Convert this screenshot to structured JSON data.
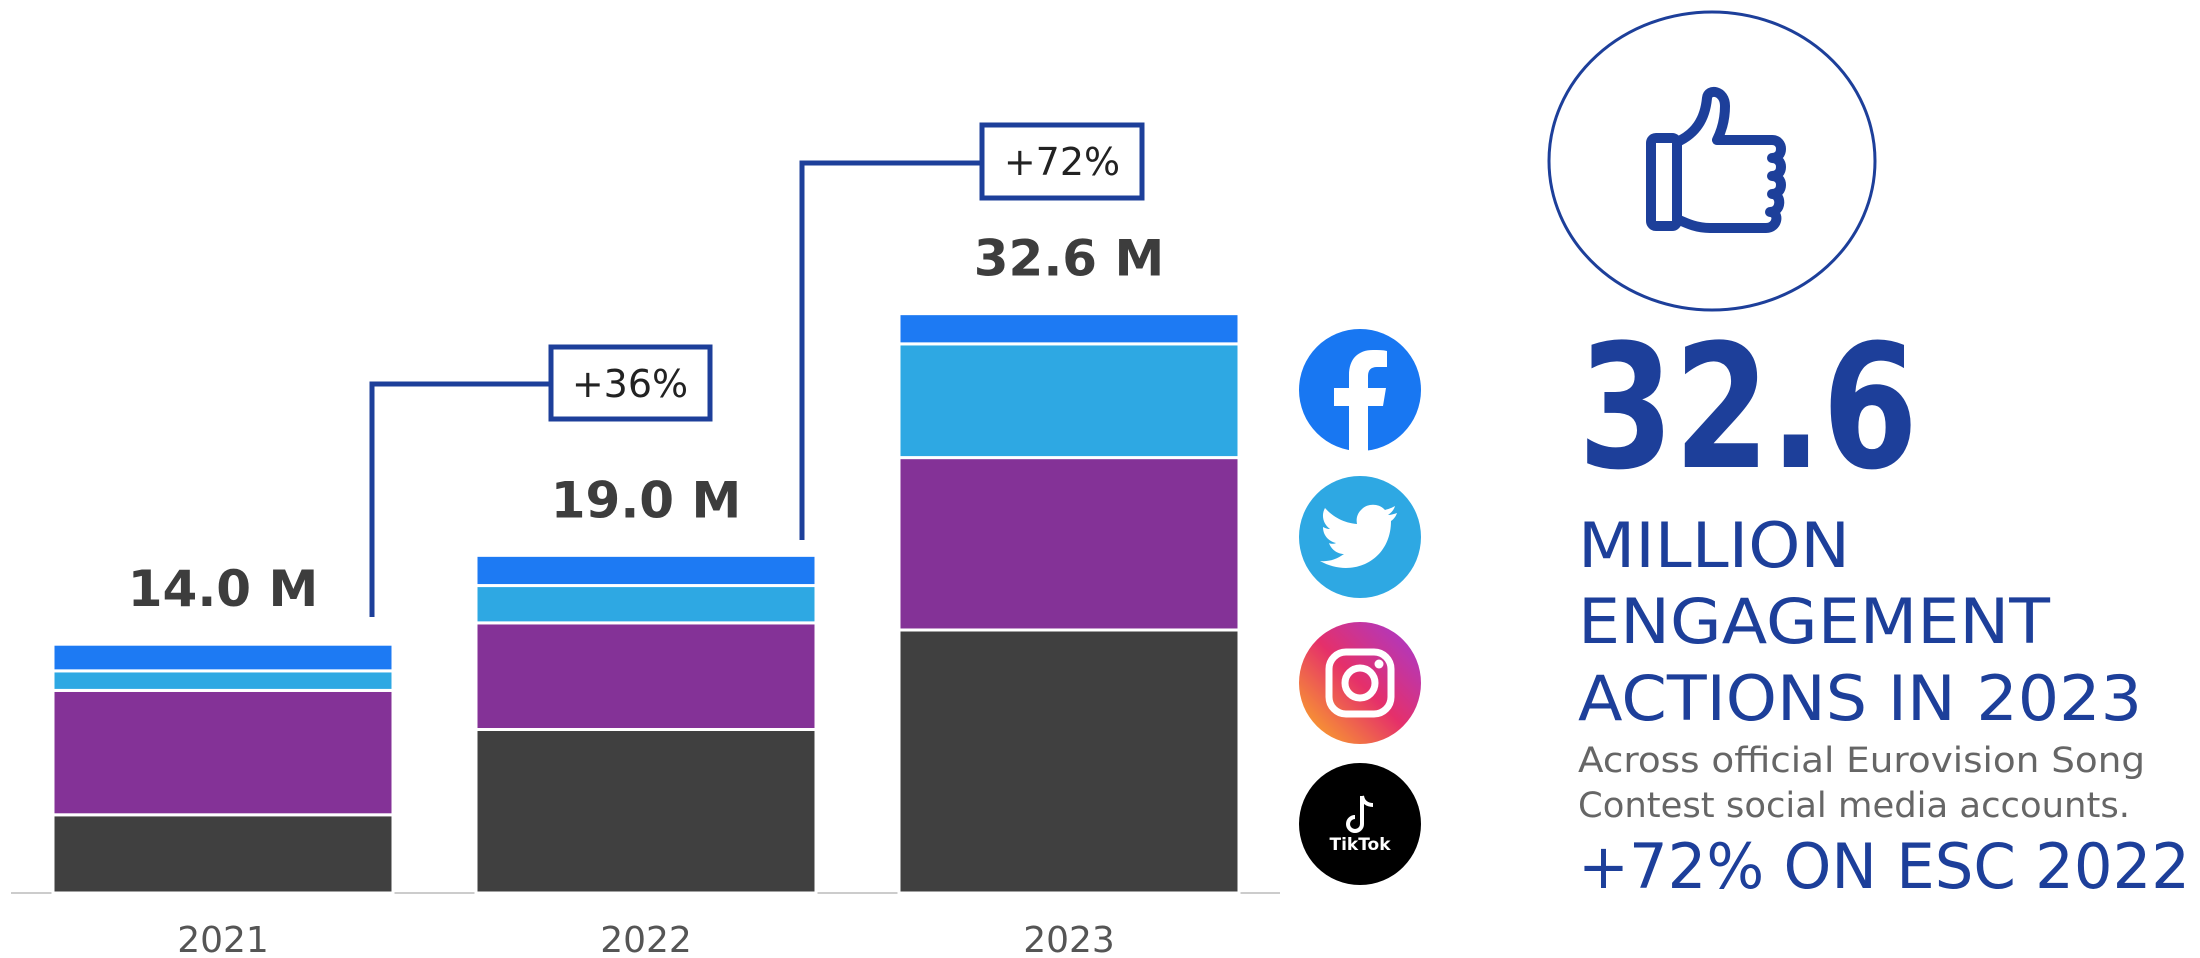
{
  "chart_data": {
    "type": "bar",
    "stacked": true,
    "categories": [
      "2021",
      "2022",
      "2023"
    ],
    "series": [
      {
        "color": "#404040",
        "values": [
          4.4,
          9.2,
          14.8
        ]
      },
      {
        "color": "#843297",
        "values": [
          7.0,
          6.0,
          9.7
        ]
      },
      {
        "color": "#2ea8e3",
        "values": [
          1.1,
          2.1,
          6.4
        ]
      },
      {
        "color": "#1d7af3",
        "values": [
          1.5,
          1.7,
          1.7
        ]
      }
    ],
    "totals": {
      "values": [
        14.0,
        19.0,
        32.6
      ],
      "value_labels": [
        "14.0 M",
        "19.0 M",
        "32.6 M"
      ]
    },
    "annotations": [
      "+36%",
      "+72%"
    ],
    "ylim": [
      0,
      35
    ]
  },
  "icons": [
    {
      "label": "TikTok"
    }
  ],
  "summary": {
    "number": "32.6",
    "lines": [
      "MILLION",
      "ENGAGEMENT",
      "ACTIONS IN 2023"
    ],
    "note": [
      "Across official Eurovision Song",
      "Contest social media accounts."
    ],
    "change": "+72% ON ESC 2022"
  }
}
